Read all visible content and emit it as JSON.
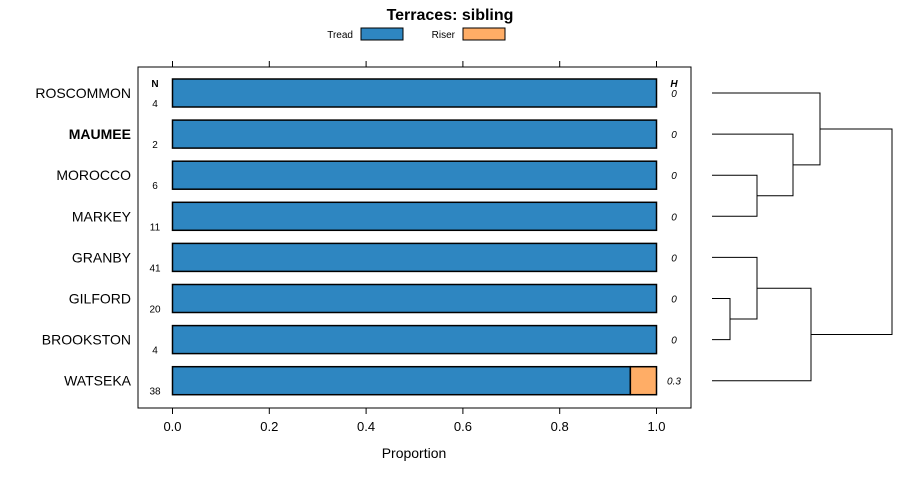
{
  "chart_data": {
    "type": "bar",
    "orientation": "horizontal",
    "stacked": true,
    "title": "Terraces: sibling",
    "xlabel": "Proportion",
    "xlim": [
      -0.07,
      1.07
    ],
    "xticks": [
      0.0,
      0.2,
      0.4,
      0.6,
      0.8,
      1.0
    ],
    "xtick_labels": [
      "0.0",
      "0.2",
      "0.4",
      "0.6",
      "0.8",
      "1.0"
    ],
    "legend": [
      {
        "name": "Tread",
        "color": "#2e86c1"
      },
      {
        "name": "Riser",
        "color": "#ffad66"
      }
    ],
    "n_header": "N",
    "h_header": "H",
    "categories": [
      "ROSCOMMON",
      "MAUMEE",
      "MOROCCO",
      "MARKEY",
      "GRANBY",
      "GILFORD",
      "BROOKSTON",
      "WATSEKA"
    ],
    "highlighted": "MAUMEE",
    "n": [
      "4",
      "2",
      "6",
      "11",
      "41",
      "20",
      "4",
      "38"
    ],
    "h": [
      "0",
      "0",
      "0",
      "0",
      "0",
      "0",
      "0",
      "0.3"
    ],
    "series": [
      {
        "name": "Tread",
        "values": [
          1,
          1,
          1,
          1,
          1,
          1,
          1,
          0.946
        ]
      },
      {
        "name": "Riser",
        "values": [
          0,
          0,
          0,
          0,
          0,
          0,
          0,
          0.054
        ]
      }
    ],
    "dendrogram": {
      "description": "hierarchical clustering of rows",
      "merges": [
        {
          "left": "MOROCCO",
          "right": "MARKEY",
          "height": 0.25
        },
        {
          "left": "MAUMEE",
          "right": "cluster1",
          "height": 0.45
        },
        {
          "left": "ROSCOMMON",
          "right": "cluster2",
          "height": 0.6
        },
        {
          "left": "GILFORD",
          "right": "BROOKSTON",
          "height": 0.1
        },
        {
          "left": "GRANBY",
          "right": "cluster4",
          "height": 0.25
        },
        {
          "left": "cluster5",
          "right": "WATSEKA",
          "height": 0.55
        },
        {
          "left": "cluster3",
          "right": "cluster6",
          "height": 1.0
        }
      ]
    }
  }
}
